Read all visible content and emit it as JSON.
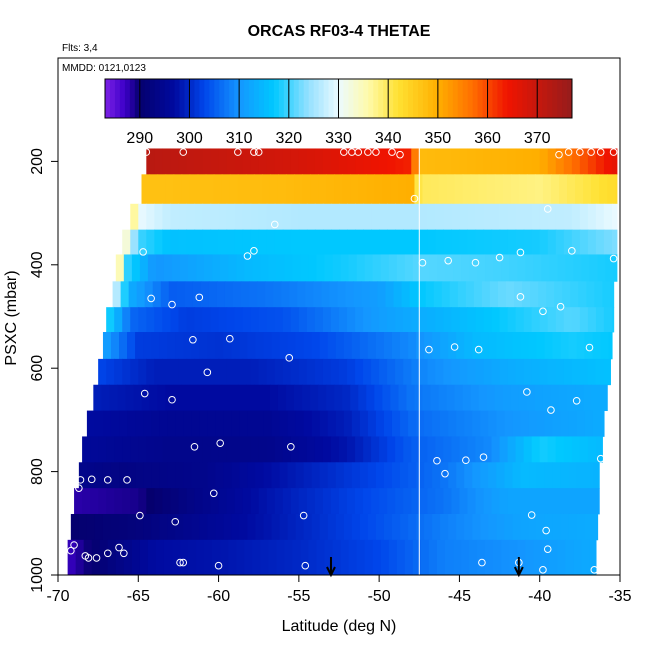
{
  "chart_data": {
    "type": "heatmap",
    "title": "ORCAS RF03-4 THETAE",
    "note_flights": "Flts: 3,4",
    "note_dates": "MMDD: 0121,0123",
    "xlabel": "Latitude (deg N)",
    "ylabel": "PSXC (mbar)",
    "xlim": [
      -70,
      -35
    ],
    "ylim": [
      1000,
      0
    ],
    "x_ticks": [
      -70,
      -65,
      -60,
      -55,
      -50,
      -45,
      -40,
      -35
    ],
    "x_tick_labels": [
      "-70",
      "-65",
      "-60",
      "-55",
      "-50",
      "-45",
      "-40",
      "-35"
    ],
    "y_ticks": [
      200,
      400,
      600,
      800,
      1000
    ],
    "y_tick_labels": [
      "200",
      "400",
      "600",
      "800",
      "1000"
    ],
    "colorbar": {
      "range": [
        283,
        377
      ],
      "ticks": [
        290,
        300,
        310,
        320,
        330,
        340,
        350,
        360,
        370
      ],
      "tick_labels": [
        "290",
        "300",
        "310",
        "320",
        "330",
        "340",
        "350",
        "360",
        "370"
      ]
    },
    "vertical_line_lat": -47.5,
    "arrows_lat": [
      -53,
      -41.3
    ],
    "layers": [
      {
        "p_top": 175,
        "p_bot": 225,
        "lat_start": -64.5,
        "lat_end": -35.2,
        "lat_pts": [
          -64.5,
          -55,
          -48,
          -47.5,
          -40,
          -35.2
        ],
        "thetae": [
          372,
          368,
          363,
          348,
          350,
          366
        ]
      },
      {
        "p_top": 225,
        "p_bot": 282,
        "lat_start": -64.8,
        "lat_end": -35.2,
        "lat_pts": [
          -64.8,
          -56,
          -48,
          -47.5,
          -40,
          -35.2
        ],
        "thetae": [
          347,
          348,
          350,
          340,
          338,
          343
        ]
      },
      {
        "p_top": 282,
        "p_bot": 332,
        "lat_start": -65.5,
        "lat_end": -35.2,
        "lat_pts": [
          -65.5,
          -65,
          -63,
          -55,
          -47.5,
          -38,
          -35.2
        ],
        "thetae": [
          343,
          330,
          327,
          326,
          326,
          327,
          330
        ]
      },
      {
        "p_top": 332,
        "p_bot": 380,
        "lat_start": -66,
        "lat_end": -35.2,
        "lat_pts": [
          -66,
          -65,
          -63,
          -55,
          -47.5,
          -40,
          -35.2
        ],
        "thetae": [
          337,
          320,
          316,
          317,
          317,
          318,
          323
        ]
      },
      {
        "p_top": 380,
        "p_bot": 432,
        "lat_start": -66.4,
        "lat_end": -35.2,
        "lat_pts": [
          -66.4,
          -65.8,
          -64,
          -58,
          -52,
          -47.5,
          -42,
          -35.2
        ],
        "thetae": [
          346,
          320,
          310,
          315,
          318,
          321,
          320,
          318
        ]
      },
      {
        "p_top": 432,
        "p_bot": 482,
        "lat_start": -66.6,
        "lat_end": -35.4,
        "lat_pts": [
          -66.6,
          -65.5,
          -63,
          -57,
          -50,
          -47.5,
          -42,
          -35.4
        ],
        "thetae": [
          330,
          313,
          305,
          307,
          311,
          317,
          322,
          318
        ]
      },
      {
        "p_top": 482,
        "p_bot": 530,
        "lat_start": -67,
        "lat_end": -35.4,
        "lat_pts": [
          -67,
          -65.5,
          -62,
          -56,
          -50,
          -44,
          -38,
          -35.4
        ],
        "thetae": [
          320,
          306,
          302,
          304,
          311,
          316,
          321,
          318
        ]
      },
      {
        "p_top": 530,
        "p_bot": 582,
        "lat_start": -67.2,
        "lat_end": -35.5,
        "lat_pts": [
          -67.2,
          -65,
          -60,
          -54,
          -48,
          -44,
          -38,
          -35.5
        ],
        "thetae": [
          312,
          302,
          301,
          303,
          309,
          315,
          318,
          317
        ]
      },
      {
        "p_top": 582,
        "p_bot": 632,
        "lat_start": -67.5,
        "lat_end": -35.6,
        "lat_pts": [
          -67.5,
          -64,
          -58,
          -52,
          -47,
          -42,
          -35.6
        ],
        "thetae": [
          303,
          299,
          299,
          302,
          309,
          313,
          316
        ]
      },
      {
        "p_top": 632,
        "p_bot": 682,
        "lat_start": -67.8,
        "lat_end": -35.8,
        "lat_pts": [
          -67.8,
          -63,
          -57,
          -52,
          -48,
          -42,
          -35.8
        ],
        "thetae": [
          299,
          297,
          297,
          300,
          307,
          311,
          313
        ]
      },
      {
        "p_top": 682,
        "p_bot": 732,
        "lat_start": -68.2,
        "lat_end": -36,
        "lat_pts": [
          -68.2,
          -63,
          -57,
          -52,
          -48,
          -42,
          -36
        ],
        "thetae": [
          297,
          295,
          295,
          299,
          306,
          310,
          313
        ]
      },
      {
        "p_top": 732,
        "p_bot": 782,
        "lat_start": -68.5,
        "lat_end": -36.1,
        "lat_pts": [
          -68.5,
          -63,
          -57,
          -52,
          -48,
          -43,
          -40,
          -36.1
        ],
        "thetae": [
          296,
          294,
          294,
          298,
          305,
          309,
          318,
          315
        ]
      },
      {
        "p_top": 782,
        "p_bot": 832,
        "lat_start": -68.7,
        "lat_end": -36.3,
        "lat_pts": [
          -68.7,
          -66,
          -61,
          -56,
          -50,
          -46,
          -41,
          -36.3
        ],
        "thetae": [
          294,
          293,
          294,
          298,
          303,
          307,
          315,
          314
        ]
      },
      {
        "p_top": 832,
        "p_bot": 882,
        "lat_start": -69,
        "lat_end": -36.3,
        "lat_pts": [
          -69,
          -65,
          -62,
          -57,
          -51,
          -46,
          -42,
          -36.3
        ],
        "thetae": [
          288,
          289,
          293,
          298,
          303,
          307,
          312,
          312
        ]
      },
      {
        "p_top": 882,
        "p_bot": 932,
        "lat_start": -69.2,
        "lat_end": -36.4,
        "lat_pts": [
          -69.2,
          -65,
          -61,
          -57,
          -51,
          -46,
          -41,
          -36.4
        ],
        "thetae": [
          290,
          292,
          295,
          298,
          303,
          308,
          312,
          313
        ]
      },
      {
        "p_top": 932,
        "p_bot": 1000,
        "lat_start": -69.4,
        "lat_end": -36.5,
        "lat_pts": [
          -69.4,
          -67,
          -64,
          -60,
          -55,
          -50,
          -46,
          -41,
          -36.5
        ],
        "thetae": [
          287,
          292,
          297,
          298,
          300,
          303,
          308,
          310,
          313
        ]
      }
    ],
    "observations": [
      [
        -64.5,
        182
      ],
      [
        -62.2,
        182
      ],
      [
        -58.8,
        182
      ],
      [
        -57.8,
        182
      ],
      [
        -57.5,
        182
      ],
      [
        -52.2,
        182
      ],
      [
        -51.7,
        182
      ],
      [
        -51.3,
        182
      ],
      [
        -50.7,
        182
      ],
      [
        -50.2,
        182
      ],
      [
        -49.2,
        182
      ],
      [
        -48.7,
        187
      ],
      [
        -38.8,
        187
      ],
      [
        -38.2,
        182
      ],
      [
        -37.5,
        182
      ],
      [
        -36.8,
        182
      ],
      [
        -36.2,
        182
      ],
      [
        -35.4,
        182
      ],
      [
        -47.8,
        272
      ],
      [
        -39.5,
        292
      ],
      [
        -56.5,
        322
      ],
      [
        -64.7,
        375
      ],
      [
        -58.2,
        383
      ],
      [
        -57.8,
        373
      ],
      [
        -47.3,
        396
      ],
      [
        -45.7,
        392
      ],
      [
        -44,
        396
      ],
      [
        -42.5,
        386
      ],
      [
        -41.2,
        376
      ],
      [
        -38,
        373
      ],
      [
        -35.4,
        388
      ],
      [
        -64.2,
        465
      ],
      [
        -62.9,
        477
      ],
      [
        -61.2,
        463
      ],
      [
        -41.2,
        462
      ],
      [
        -39.8,
        490
      ],
      [
        -38.7,
        481
      ],
      [
        -61.6,
        545
      ],
      [
        -59.3,
        543
      ],
      [
        -55.6,
        580
      ],
      [
        -46.9,
        564
      ],
      [
        -45.3,
        559
      ],
      [
        -43.8,
        564
      ],
      [
        -36.9,
        560
      ],
      [
        -60.7,
        608
      ],
      [
        -64.6,
        649
      ],
      [
        -62.9,
        661
      ],
      [
        -40.8,
        646
      ],
      [
        -39.3,
        681
      ],
      [
        -37.7,
        663
      ],
      [
        -68.9,
        733
      ],
      [
        -61.5,
        752
      ],
      [
        -59.9,
        745
      ],
      [
        -55.5,
        752
      ],
      [
        -46.4,
        779
      ],
      [
        -45.9,
        804
      ],
      [
        -44.6,
        778
      ],
      [
        -43.5,
        772
      ],
      [
        -36.2,
        775
      ],
      [
        -68.6,
        816
      ],
      [
        -68.7,
        832
      ],
      [
        -67.9,
        815
      ],
      [
        -66.9,
        816
      ],
      [
        -65.7,
        816
      ],
      [
        -60.3,
        842
      ],
      [
        -64.9,
        885
      ],
      [
        -62.7,
        897
      ],
      [
        -54.7,
        885
      ],
      [
        -40.5,
        884
      ],
      [
        -39.6,
        914
      ],
      [
        -69.2,
        953
      ],
      [
        -69,
        942
      ],
      [
        -68.3,
        963
      ],
      [
        -68.1,
        967
      ],
      [
        -67.6,
        967
      ],
      [
        -66.9,
        958
      ],
      [
        -66.2,
        947
      ],
      [
        -65.9,
        958
      ],
      [
        -62.4,
        976
      ],
      [
        -62.2,
        976
      ],
      [
        -60,
        982
      ],
      [
        -54.6,
        982
      ],
      [
        -43.6,
        976
      ],
      [
        -41.3,
        976
      ],
      [
        -39.8,
        990
      ],
      [
        -39.5,
        950
      ],
      [
        -36.6,
        990
      ]
    ]
  }
}
